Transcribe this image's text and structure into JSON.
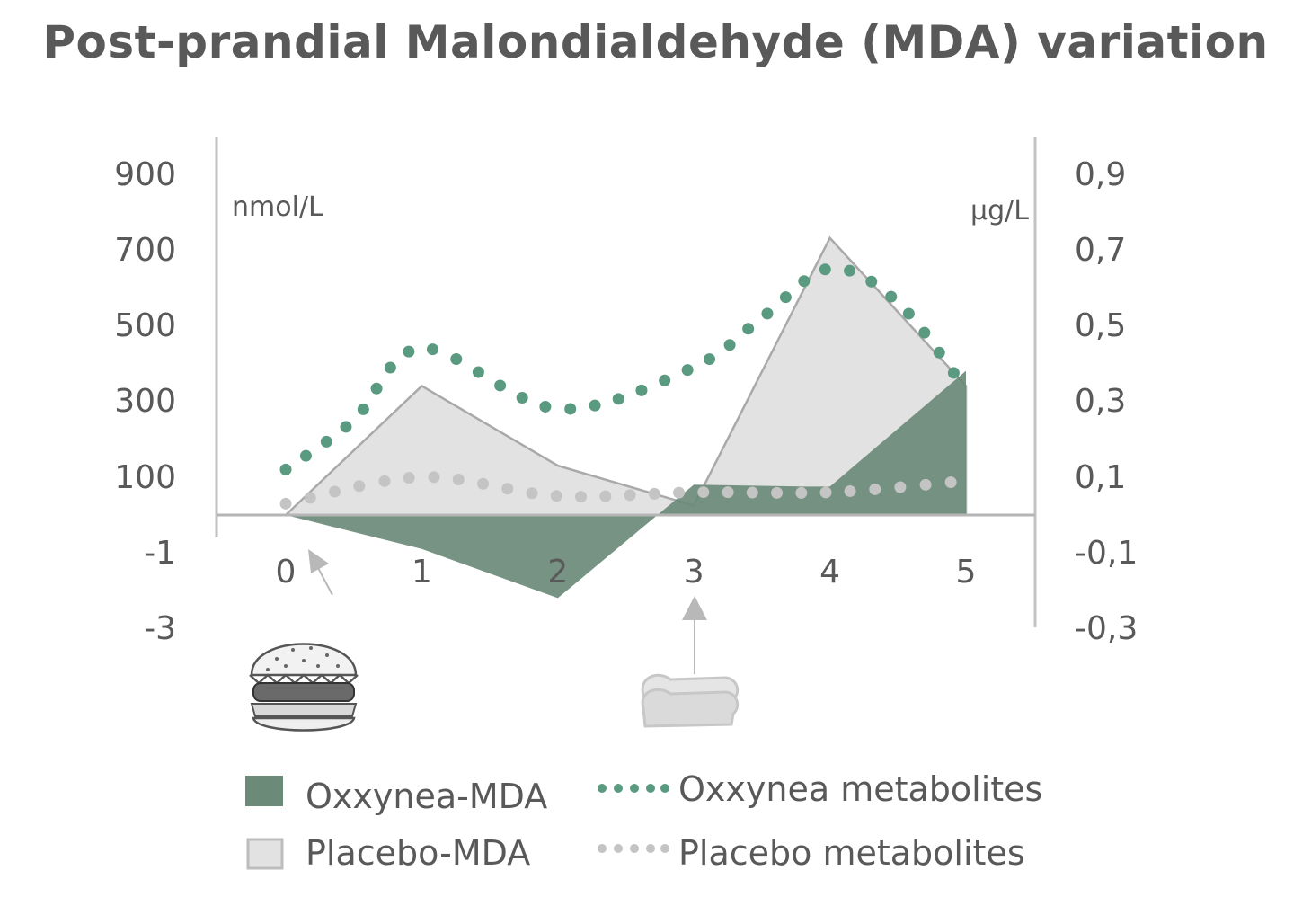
{
  "title": "Post-prandial Malondialdehyde (MDA) variation",
  "chart_data": {
    "type": "area",
    "title": "Post-prandial Malondialdehyde (MDA) variation",
    "categories": [
      "0",
      "1",
      "2",
      "3",
      "4",
      "5"
    ],
    "y_left": {
      "unit": "nmol/L",
      "tick_labels": [
        "900",
        "700",
        "500",
        "300",
        "100",
        "-1",
        "-3"
      ]
    },
    "y_right": {
      "unit": "µg/L",
      "tick_labels": [
        "0,9",
        "0,7",
        "0,5",
        "0,3",
        "0,1",
        "-0,1",
        "-0,3"
      ]
    },
    "series": [
      {
        "name": "Placebo-MDA",
        "kind": "area",
        "axis": "left",
        "color": "#e2e2e2",
        "x": [
          0,
          1,
          2,
          3,
          3.0,
          4,
          5
        ],
        "values": [
          0,
          340,
          130,
          25,
          25,
          730,
          340
        ]
      },
      {
        "name": "Oxxynea-MDA",
        "kind": "area",
        "axis": "left",
        "color": "#6b8a78",
        "x": [
          0,
          1,
          2,
          3,
          3.8,
          4,
          5
        ],
        "values": [
          0,
          -0.9,
          -2.2,
          80,
          75,
          75,
          380
        ]
      },
      {
        "name": "Oxxynea metabolites",
        "kind": "dotted",
        "axis": "right",
        "color": "#5a9a80",
        "x": [
          0,
          0.5,
          1.0,
          2.0,
          3.0,
          3.5,
          4.0,
          4.5,
          5.0
        ],
        "values": [
          0.12,
          0.25,
          0.44,
          0.28,
          0.39,
          0.52,
          0.65,
          0.56,
          0.33
        ]
      },
      {
        "name": "Placebo metabolites",
        "kind": "dotted",
        "axis": "right",
        "color": "#c4c4c4",
        "x": [
          0,
          1.0,
          2.0,
          3.0,
          4.0,
          5.0
        ],
        "values": [
          0.03,
          0.1,
          0.05,
          0.06,
          0.06,
          0.09
        ]
      }
    ],
    "legend": [
      {
        "label": "Oxxynea-MDA",
        "style": "filled-square",
        "color": "#6b8a78"
      },
      {
        "label": "Oxxynea metabolites",
        "style": "dotted-line",
        "color": "#5a9a80"
      },
      {
        "label": "Placebo-MDA",
        "style": "outlined-square",
        "color": "#e2e2e2"
      },
      {
        "label": "Placebo metabolites",
        "style": "dotted-line",
        "color": "#c4c4c4"
      }
    ],
    "legend_position": "bottom",
    "grid": false,
    "icons": [
      {
        "name": "burger-icon",
        "at_x": 0
      },
      {
        "name": "bread-icon",
        "at_x": 3
      }
    ]
  }
}
